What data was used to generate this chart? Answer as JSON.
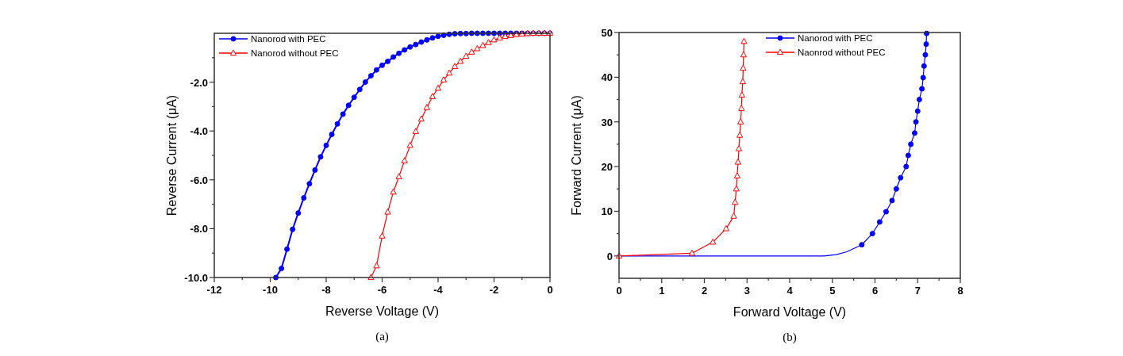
{
  "chart_data": [
    {
      "type": "line",
      "xlabel": "Reverse Voltage (V)",
      "ylabel": "Reverse Current (μA)",
      "annotations": [
        "(a)"
      ],
      "legend": "top left",
      "grid": false,
      "xlim": [
        -12,
        0
      ],
      "xticks": [
        -12,
        {
          "value": -11,
          "label": null
        },
        -10,
        {
          "value": -9,
          "label": null
        },
        -8,
        {
          "value": -7,
          "label": null
        },
        -6,
        {
          "value": -5,
          "label": null
        },
        -4,
        {
          "value": -3,
          "label": null
        },
        -2,
        {
          "value": -1,
          "label": null
        },
        0
      ],
      "ylim": [
        -10,
        0
      ],
      "yticks": [
        {
          "value": -10,
          "label": "-10.0"
        },
        {
          "value": -9,
          "label": null
        },
        {
          "value": -8,
          "label": "-8.0"
        },
        {
          "value": -7,
          "label": null
        },
        {
          "value": -6,
          "label": "-6.0"
        },
        {
          "value": -5,
          "label": null
        },
        {
          "value": -4,
          "label": "-4.0"
        },
        {
          "value": -3,
          "label": null
        },
        {
          "value": -2,
          "label": "-2.0"
        },
        {
          "value": -1,
          "label": null
        }
      ],
      "series": [
        {
          "name": "Nanorod with PEC",
          "color": "#0000ff",
          "marker": "circle",
          "x": [
            -9.8,
            -9.6,
            -9.4,
            -9.2,
            -9.0,
            -8.8,
            -8.6,
            -8.4,
            -8.2,
            -8.0,
            -7.8,
            -7.6,
            -7.4,
            -7.2,
            -7.0,
            -6.8,
            -6.6,
            -6.4,
            -6.2,
            -6.0,
            -5.8,
            -5.6,
            -5.4,
            -5.2,
            -5.0,
            -4.8,
            -4.6,
            -4.4,
            -4.2,
            -4.0,
            -3.8,
            -3.6,
            -3.4,
            -3.2,
            -3.0,
            -2.8,
            -2.6,
            -2.4,
            -2.2,
            -2.0,
            -1.8,
            -1.6,
            -1.4,
            -1.2,
            -1.0,
            -0.8,
            -0.6,
            -0.4,
            -0.2,
            0
          ],
          "values": [
            -10.0,
            -9.63,
            -8.84,
            -8.03,
            -7.36,
            -6.74,
            -6.16,
            -5.6,
            -5.06,
            -4.59,
            -4.14,
            -3.71,
            -3.31,
            -2.95,
            -2.62,
            -2.3,
            -2.0,
            -1.74,
            -1.5,
            -1.31,
            -1.15,
            -0.97,
            -0.82,
            -0.68,
            -0.56,
            -0.46,
            -0.36,
            -0.27,
            -0.19,
            -0.12,
            -0.08,
            -0.04,
            -0.02,
            -0.01,
            -0.01,
            0,
            0,
            0,
            0,
            0,
            0,
            0,
            0,
            0,
            0,
            0,
            0,
            0,
            0,
            0
          ]
        },
        {
          "name": "Nanorod without PEC",
          "color": "#ff0000",
          "marker": "triangle",
          "x": [
            -6.4,
            -6.2,
            -6.0,
            -5.8,
            -5.6,
            -5.4,
            -5.2,
            -5.0,
            -4.8,
            -4.6,
            -4.4,
            -4.2,
            -4.0,
            -3.8,
            -3.6,
            -3.4,
            -3.2,
            -3.0,
            -2.8,
            -2.6,
            -2.4,
            -2.2,
            -2.0,
            -1.8,
            -1.6,
            -1.4,
            -1.2,
            -1.0,
            -0.8,
            -0.6,
            -0.4,
            -0.2,
            0
          ],
          "values": [
            -10.0,
            -9.52,
            -8.3,
            -7.32,
            -6.5,
            -5.87,
            -5.22,
            -4.59,
            -4.02,
            -3.51,
            -3.04,
            -2.59,
            -2.25,
            -1.91,
            -1.63,
            -1.36,
            -1.15,
            -0.94,
            -0.77,
            -0.63,
            -0.5,
            -0.38,
            -0.27,
            -0.19,
            -0.13,
            -0.09,
            -0.05,
            -0.03,
            -0.01,
            0,
            0,
            0,
            0
          ]
        }
      ]
    },
    {
      "type": "line",
      "xlabel": "Forward Voltage (V)",
      "ylabel": "Forward Current (μA)",
      "annotations": [
        "(b)"
      ],
      "legend": "top right",
      "grid": false,
      "xlim": [
        0,
        8
      ],
      "xticks": [
        0,
        {
          "value": 0.5,
          "label": null
        },
        1,
        {
          "value": 1.5,
          "label": null
        },
        2,
        {
          "value": 2.5,
          "label": null
        },
        3,
        {
          "value": 3.5,
          "label": null
        },
        4,
        {
          "value": 4.5,
          "label": null
        },
        5,
        {
          "value": 5.5,
          "label": null
        },
        6,
        {
          "value": 6.5,
          "label": null
        },
        7,
        {
          "value": 7.5,
          "label": null
        },
        8
      ],
      "ylim": [
        -5,
        50
      ],
      "yticks": [
        0,
        {
          "value": 5,
          "label": null
        },
        10,
        {
          "value": 15,
          "label": null
        },
        20,
        {
          "value": 25,
          "label": null
        },
        30,
        {
          "value": 35,
          "label": null
        },
        40,
        {
          "value": 45,
          "label": null
        },
        50
      ],
      "series": [
        {
          "color": "#0000ff",
          "marker": "none",
          "x": [
            0,
            4.8,
            5.09,
            5.33,
            5.69
          ],
          "values": [
            0,
            0,
            0.3,
            0.9,
            2.5
          ]
        },
        {
          "name": "Nanorod with PEC",
          "color": "#0000ff",
          "marker": "circle",
          "x": [
            5.69,
            5.94,
            6.11,
            6.26,
            6.4,
            6.5,
            6.6,
            6.73,
            6.78,
            6.84,
            6.93,
            6.96,
            7.0,
            7.04,
            7.1,
            7.13,
            7.15,
            7.18,
            7.2,
            7.21
          ],
          "values": [
            2.5,
            5.0,
            7.6,
            9.9,
            12.4,
            15.0,
            17.5,
            20.0,
            22.5,
            25.0,
            27.5,
            30.0,
            32.4,
            35.0,
            37.4,
            39.9,
            42.5,
            45.0,
            47.4,
            49.8
          ]
        },
        {
          "name": "Naonrod without PEC",
          "color": "#ff0000",
          "marker": "triangle",
          "x": [
            0,
            1.71,
            2.2,
            2.51,
            2.69,
            2.72,
            2.75,
            2.77,
            2.79,
            2.81,
            2.83,
            2.85,
            2.87,
            2.88,
            2.9,
            2.91,
            2.92,
            2.93
          ],
          "values": [
            0,
            0.6,
            3.1,
            6.1,
            8.9,
            12.0,
            15.0,
            17.9,
            21.0,
            24.0,
            27.0,
            30.0,
            33.0,
            36.0,
            39.0,
            42.0,
            45.0,
            48.0
          ]
        }
      ]
    }
  ]
}
